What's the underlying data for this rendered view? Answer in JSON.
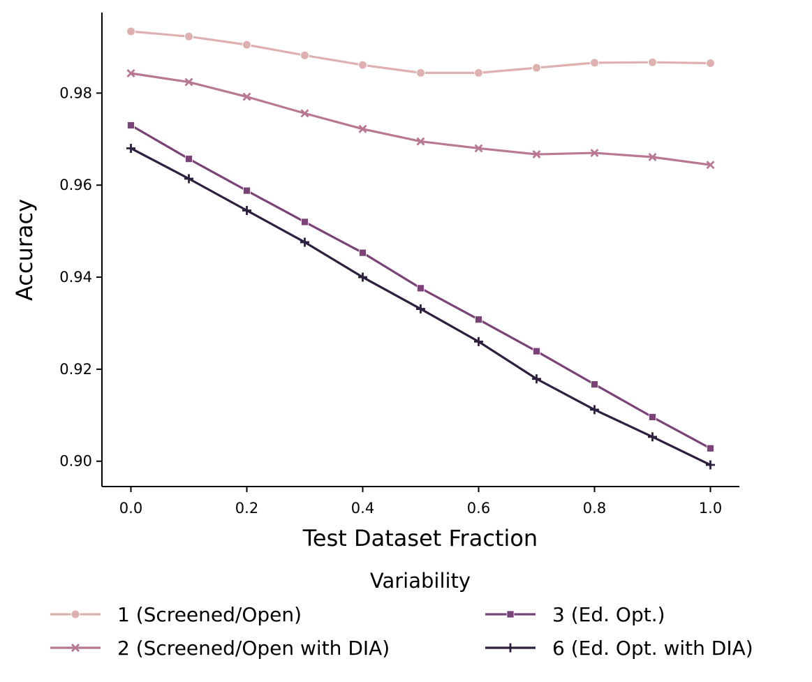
{
  "chart_data": {
    "type": "line",
    "title": "",
    "xlabel": "Test Dataset Fraction",
    "ylabel": "Accuracy",
    "xlim": [
      -0.05,
      1.05
    ],
    "ylim": [
      0.8945,
      0.9975
    ],
    "x": [
      0.0,
      0.1,
      0.2,
      0.3,
      0.4,
      0.5,
      0.6,
      0.7,
      0.8,
      0.9,
      1.0
    ],
    "xticks": [
      0.0,
      0.2,
      0.4,
      0.6,
      0.8,
      1.0
    ],
    "xtick_labels": [
      "0.0",
      "0.2",
      "0.4",
      "0.6",
      "0.8",
      "1.0"
    ],
    "yticks": [
      0.9,
      0.92,
      0.94,
      0.96,
      0.98
    ],
    "ytick_labels": [
      "0.90",
      "0.92",
      "0.94",
      "0.96",
      "0.98"
    ],
    "grid": false,
    "legend": {
      "title": "Variability",
      "placement": "below-center",
      "columns": 2
    },
    "series": [
      {
        "name": "1 (Screened/Open)",
        "color": "#dfb0b0",
        "marker": "circle",
        "values": [
          0.9934,
          0.9923,
          0.9905,
          0.9882,
          0.9861,
          0.9844,
          0.9844,
          0.9855,
          0.9866,
          0.9867,
          0.9865
        ]
      },
      {
        "name": "2 (Screened/Open with DIA)",
        "color": "#b87894",
        "marker": "x",
        "values": [
          0.9843,
          0.9824,
          0.9792,
          0.9756,
          0.9722,
          0.9695,
          0.968,
          0.9667,
          0.967,
          0.9661,
          0.9644
        ]
      },
      {
        "name": "3 (Ed. Opt.)",
        "color": "#7a4276",
        "marker": "square",
        "values": [
          0.973,
          0.9657,
          0.9588,
          0.952,
          0.9453,
          0.9376,
          0.9308,
          0.9239,
          0.9167,
          0.9096,
          0.9028
        ]
      },
      {
        "name": "6 (Ed. Opt. with DIA)",
        "color": "#2d1f3d",
        "marker": "plus",
        "values": [
          0.968,
          0.9614,
          0.9545,
          0.9476,
          0.94,
          0.9331,
          0.926,
          0.9179,
          0.9112,
          0.9053,
          0.8992
        ]
      }
    ]
  }
}
